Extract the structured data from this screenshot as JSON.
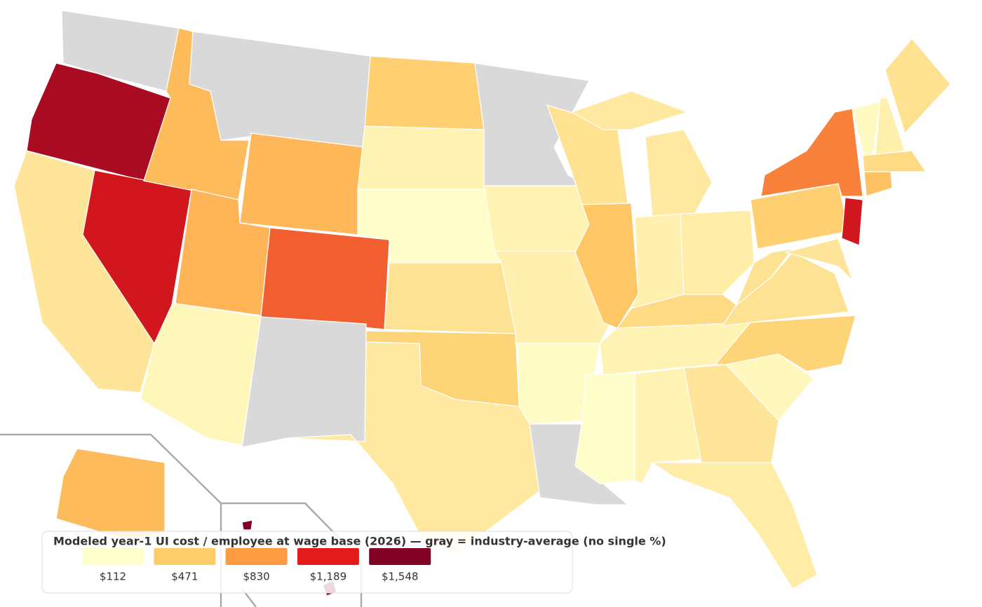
{
  "map": {
    "type": "choropleth",
    "title": "Modeled year-1 UI cost / employee at wage base (2026) — gray = industry-average (no single %)",
    "missing_color": "#d9d9d9",
    "scale": [
      {
        "value": 112,
        "label": "$112",
        "color": "#ffffcc"
      },
      {
        "value": 471,
        "label": "$471",
        "color": "#fecd6b"
      },
      {
        "value": 830,
        "label": "$830",
        "color": "#fd9b42"
      },
      {
        "value": 1189,
        "label": "$1,189",
        "color": "#e31a1c"
      },
      {
        "value": 1548,
        "label": "$1,548",
        "color": "#800026"
      }
    ],
    "values": [
      null,
      1400,
      300,
      1250,
      600,
      null,
      620,
      650,
      180,
      1000,
      null,
      450,
      200,
      120,
      320,
      420,
      280,
      null,
      200,
      220,
      140,
      null,
      330,
      520,
      280,
      220,
      250,
      380,
      200,
      120,
      200,
      300,
      250,
      170,
      420,
      320,
      320,
      450,
      900,
      1250,
      300,
      150,
      230,
      330,
      380,
      550,
      600,
      1548
    ]
  }
}
